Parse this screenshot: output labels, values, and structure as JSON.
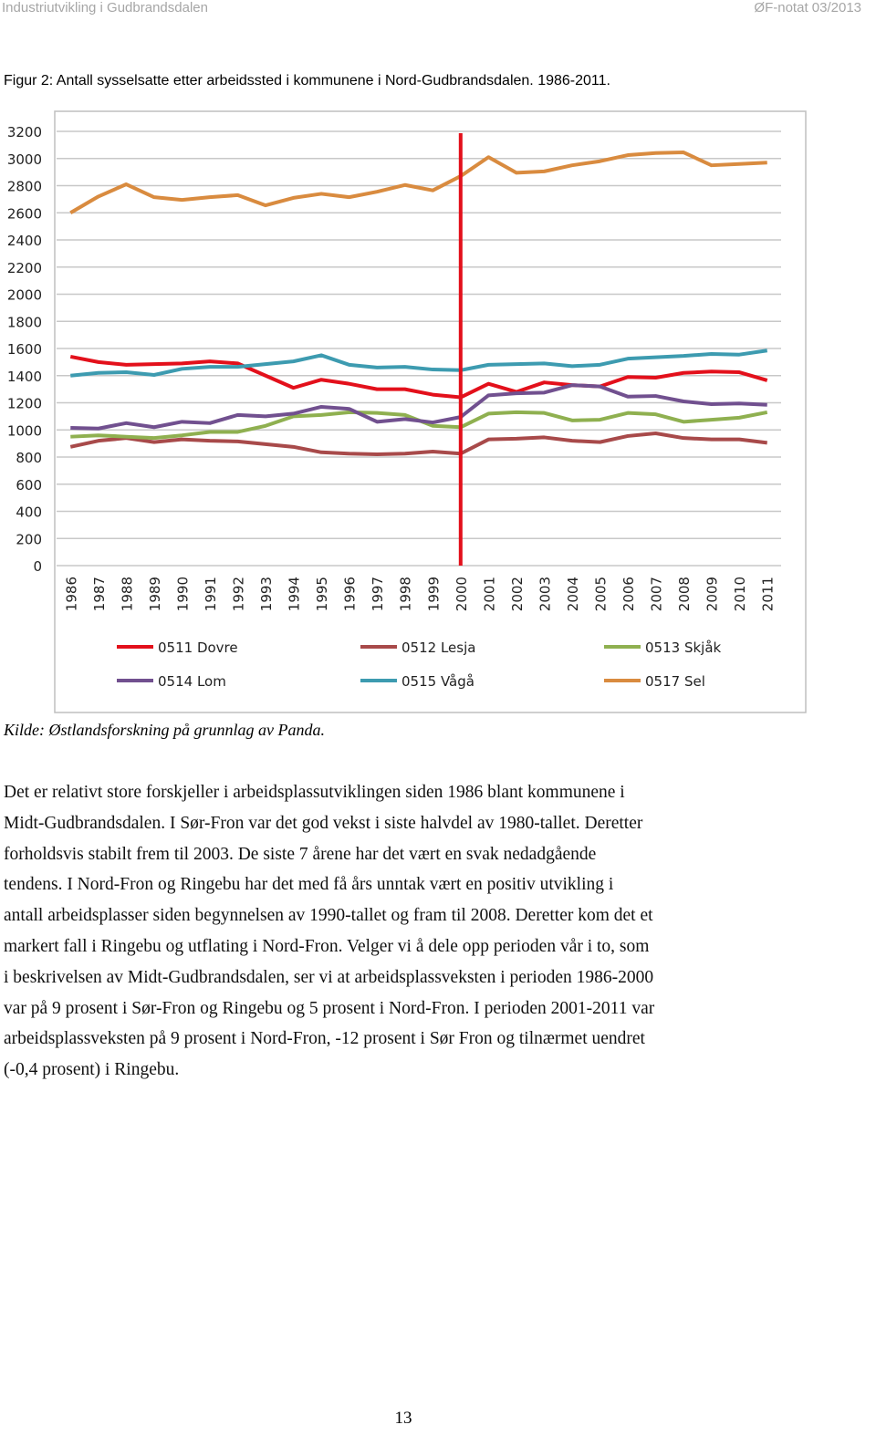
{
  "header": {
    "left": "Industriutvikling i Gudbrandsdalen",
    "right": "ØF-notat 03/2013"
  },
  "figure": {
    "caption": "Figur 2: Antall sysselsatte etter arbeidssted i kommunene i Nord-Gudbrandsdalen. 1986-2011.",
    "source": "Kilde: Østlandsforskning på grunnlag av Panda."
  },
  "chart_data": {
    "type": "line",
    "categories": [
      "1986",
      "1987",
      "1988",
      "1989",
      "1990",
      "1991",
      "1992",
      "1993",
      "1994",
      "1995",
      "1996",
      "1997",
      "1998",
      "1999",
      "2000",
      "2001",
      "2002",
      "2003",
      "2004",
      "2005",
      "2006",
      "2007",
      "2008",
      "2009",
      "2010",
      "2011"
    ],
    "ylim": [
      0,
      3200
    ],
    "yticks": [
      0,
      200,
      400,
      600,
      800,
      1000,
      1200,
      1400,
      1600,
      1800,
      2000,
      2200,
      2400,
      2600,
      2800,
      3000,
      3200
    ],
    "grid": true,
    "vline": 2000,
    "vline_color": "#e3101b",
    "series": [
      {
        "name": "0511 Dovre",
        "color": "#e3101b",
        "values": [
          1540,
          1500,
          1480,
          1485,
          1490,
          1505,
          1490,
          1400,
          1310,
          1370,
          1340,
          1300,
          1300,
          1260,
          1240,
          1340,
          1280,
          1350,
          1330,
          1320,
          1390,
          1385,
          1420,
          1430,
          1425,
          1365
        ]
      },
      {
        "name": "0512 Lesja",
        "color": "#a84a4a",
        "values": [
          875,
          920,
          940,
          910,
          930,
          920,
          915,
          895,
          875,
          835,
          825,
          820,
          825,
          840,
          825,
          930,
          935,
          945,
          920,
          910,
          955,
          975,
          940,
          930,
          930,
          905
        ]
      },
      {
        "name": "0513 Skjåk",
        "color": "#8fb050",
        "values": [
          950,
          960,
          950,
          940,
          960,
          985,
          985,
          1030,
          1100,
          1110,
          1130,
          1125,
          1110,
          1030,
          1020,
          1120,
          1130,
          1125,
          1070,
          1075,
          1125,
          1115,
          1060,
          1075,
          1090,
          1130
        ]
      },
      {
        "name": "0514 Lom",
        "color": "#71508f",
        "values": [
          1015,
          1010,
          1050,
          1020,
          1060,
          1050,
          1110,
          1100,
          1120,
          1170,
          1155,
          1060,
          1080,
          1055,
          1095,
          1255,
          1270,
          1275,
          1330,
          1320,
          1245,
          1250,
          1210,
          1190,
          1195,
          1185
        ]
      },
      {
        "name": "0515 Vågå",
        "color": "#3d9bb0",
        "values": [
          1400,
          1420,
          1425,
          1405,
          1450,
          1465,
          1465,
          1485,
          1505,
          1550,
          1480,
          1460,
          1465,
          1445,
          1440,
          1480,
          1485,
          1490,
          1470,
          1480,
          1525,
          1535,
          1545,
          1560,
          1555,
          1585
        ]
      },
      {
        "name": "0517 Sel",
        "color": "#d98b3f",
        "values": [
          2600,
          2720,
          2810,
          2715,
          2695,
          2715,
          2730,
          2655,
          2710,
          2740,
          2715,
          2755,
          2805,
          2765,
          2870,
          3010,
          2895,
          2905,
          2950,
          2980,
          3025,
          3040,
          3045,
          2950,
          2960,
          2970
        ]
      }
    ]
  },
  "body": {
    "lines": [
      "Det er relativt store forskjeller i arbeidsplassutviklingen siden 1986 blant kommunene i",
      "Midt-Gudbrandsdalen. I Sør-Fron var det god vekst i siste halvdel av 1980-tallet. Deretter",
      "forholdsvis stabilt frem til 2003. De siste 7 årene har det vært en svak nedadgående",
      "tendens. I Nord-Fron og Ringebu har det med få års unntak vært en positiv utvikling i",
      "antall arbeidsplasser siden begynnelsen av 1990-tallet og fram til 2008. Deretter kom det et",
      "markert fall i Ringebu og utflating i Nord-Fron. Velger vi å dele opp perioden vår i to, som",
      "i beskrivelsen av Midt-Gudbrandsdalen, ser vi at arbeidsplassveksten i perioden 1986-2000",
      "var på 9 prosent i Sør-Fron og Ringebu og 5 prosent i Nord-Fron. I perioden 2001-2011 var",
      "arbeidsplassveksten på 9 prosent i Nord-Fron, -12 prosent i Sør Fron og tilnærmet uendret",
      "(-0,4 prosent) i Ringebu."
    ]
  },
  "page_number": "13"
}
